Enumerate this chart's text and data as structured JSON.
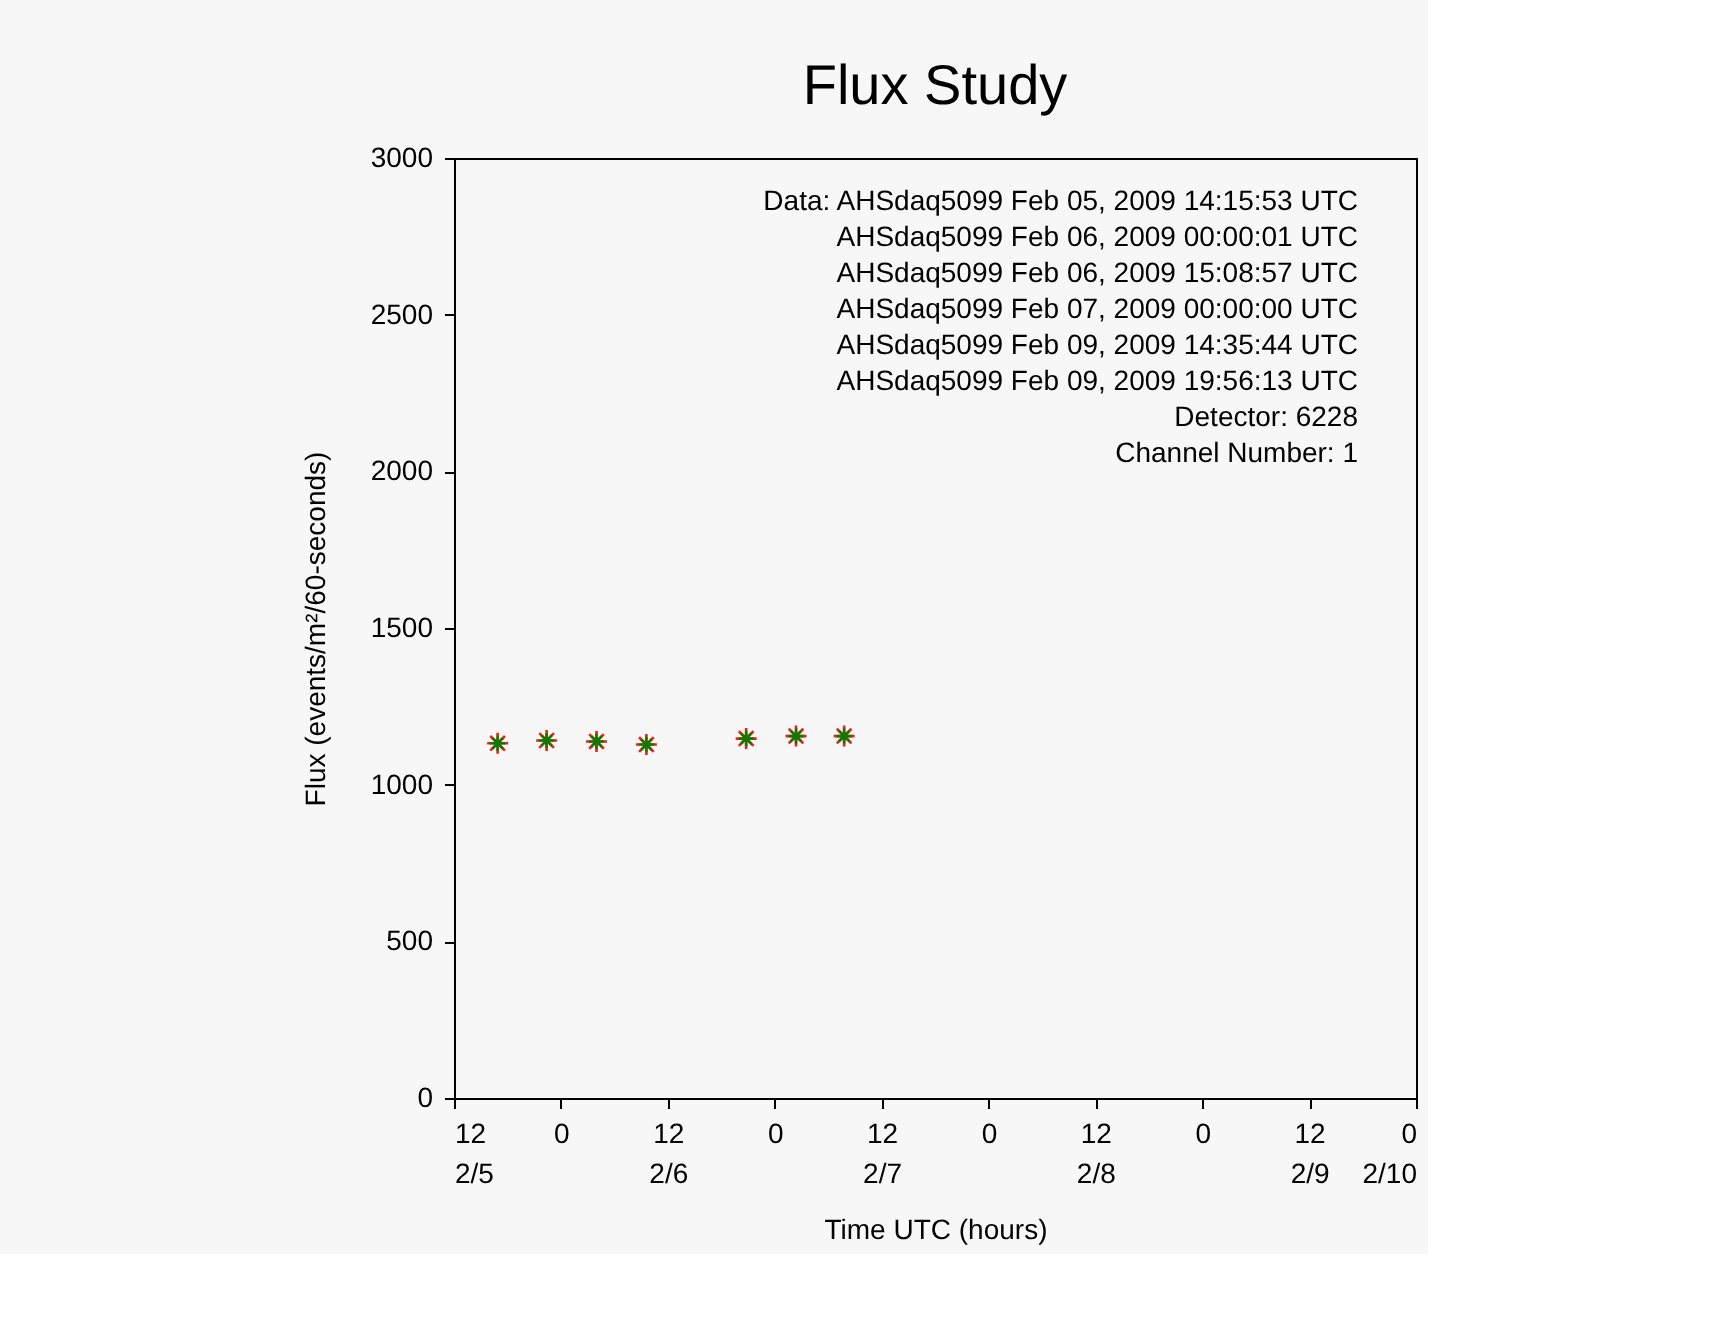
{
  "chart_data": {
    "type": "scatter",
    "title": "Flux Study",
    "xlabel": "Time UTC (hours)",
    "ylabel": "Flux (events/m²/60-seconds)",
    "x": [
      "2009-02-05T16:54",
      "2009-02-05T22:24",
      "2009-02-06T04:00",
      "2009-02-06T09:36",
      "2009-02-06T20:48",
      "2009-02-07T02:24",
      "2009-02-07T07:48"
    ],
    "series": [
      {
        "color": "#ff0000",
        "marker": "cross",
        "values": [
          1132,
          1141,
          1138,
          1128,
          1147,
          1155,
          1155
        ]
      },
      {
        "color": "#008000",
        "marker": "cross",
        "values": [
          1132,
          1141,
          1138,
          1128,
          1147,
          1155,
          1155
        ]
      }
    ],
    "xlim": [
      "2009-02-05T12:00",
      "2009-02-10T00:00"
    ],
    "xticks": [
      {
        "value": "2009-02-05T12:00",
        "label": "12\n2/5"
      },
      {
        "value": "2009-02-06T00:00",
        "label": "0"
      },
      {
        "value": "2009-02-06T12:00",
        "label": "12\n2/6"
      },
      {
        "value": "2009-02-07T00:00",
        "label": "0"
      },
      {
        "value": "2009-02-07T12:00",
        "label": "12\n2/7"
      },
      {
        "value": "2009-02-08T00:00",
        "label": "0"
      },
      {
        "value": "2009-02-08T12:00",
        "label": "12\n2/8"
      },
      {
        "value": "2009-02-09T00:00",
        "label": "0"
      },
      {
        "value": "2009-02-09T12:00",
        "label": "12\n2/9"
      },
      {
        "value": "2009-02-10T00:00",
        "label": "0\n2/10"
      }
    ],
    "ylim": [
      0,
      3000
    ],
    "yticks": [
      0,
      500,
      1000,
      1500,
      2000,
      2500,
      3000
    ],
    "grid": false,
    "annotations": [
      "Data: AHSdaq5099 Feb 05, 2009 14:15:53 UTC",
      "AHSdaq5099 Feb 06, 2009 00:00:01 UTC",
      "AHSdaq5099 Feb 06, 2009 15:08:57 UTC",
      "AHSdaq5099 Feb 07, 2009 00:00:00 UTC",
      "AHSdaq5099 Feb 09, 2009 14:35:44 UTC",
      "AHSdaq5099 Feb 09, 2009 19:56:13 UTC",
      "Detector: 6228",
      "Channel Number: 1"
    ]
  }
}
